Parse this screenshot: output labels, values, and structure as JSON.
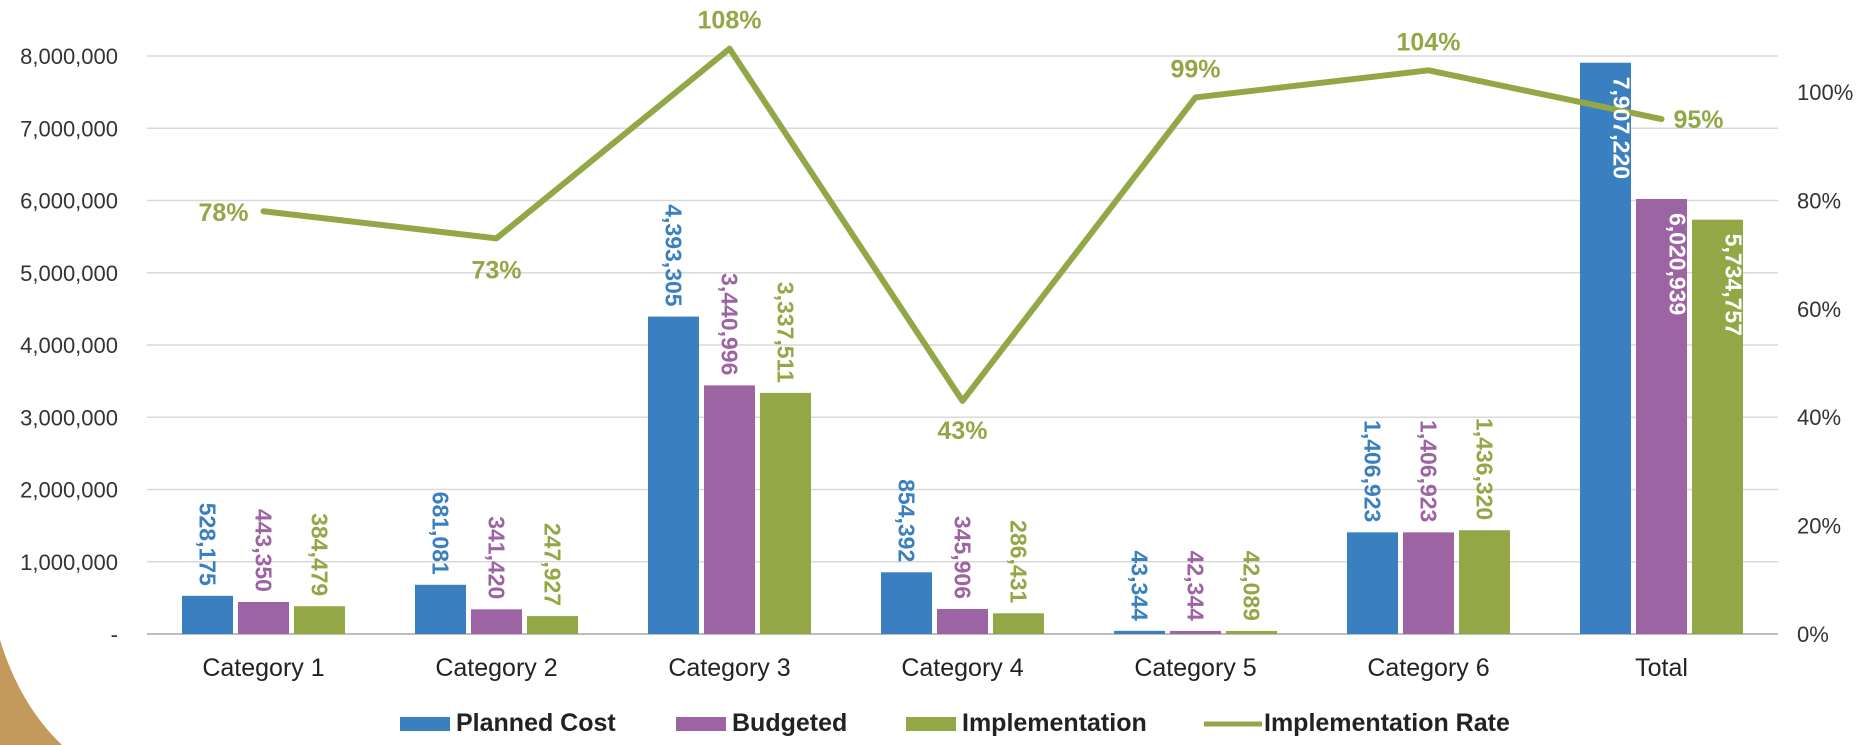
{
  "chart_data": {
    "type": "bar",
    "categories": [
      "Category 1",
      "Category 2",
      "Category 3",
      "Category 4",
      "Category 5",
      "Category 6",
      "Total"
    ],
    "series": [
      {
        "name": "Planned Cost",
        "kind": "bar",
        "axis": "left",
        "color": "#3a80c1",
        "values": [
          528175,
          681081,
          4393305,
          854392,
          43344,
          1406923,
          7907220
        ],
        "labels": [
          "528,175",
          "681,081",
          "4,393,305",
          "854,392",
          "43,344",
          "1,406,923",
          "7,907,220"
        ]
      },
      {
        "name": "Budgeted",
        "kind": "bar",
        "axis": "left",
        "color": "#9d64a3",
        "values": [
          443350,
          341420,
          3440996,
          345906,
          42344,
          1406923,
          6020939
        ],
        "labels": [
          "443,350",
          "341,420",
          "3,440,996",
          "345,906",
          "42,344",
          "1,406,923",
          "6,020,939"
        ]
      },
      {
        "name": "Implementation",
        "kind": "bar",
        "axis": "left",
        "color": "#93a746",
        "values": [
          384479,
          247927,
          3337511,
          286431,
          42089,
          1436320,
          5734757
        ],
        "labels": [
          "384,479",
          "247,927",
          "3,337,511",
          "286,431",
          "42,089",
          "1,436,320",
          "5,734,757"
        ]
      },
      {
        "name": "Implementation Rate",
        "kind": "line",
        "axis": "right",
        "color": "#93a746",
        "values": [
          78,
          73,
          108,
          43,
          99,
          104,
          95
        ],
        "labels": [
          "78%",
          "73%",
          "108%",
          "43%",
          "99%",
          "104%",
          "95%"
        ]
      }
    ],
    "y_left": {
      "ylim": [
        0,
        8000000
      ],
      "ticks": [
        0,
        1000000,
        2000000,
        3000000,
        4000000,
        5000000,
        6000000,
        7000000,
        8000000
      ],
      "tick_labels": [
        "-",
        "1,000,000",
        "2,000,000",
        "3,000,000",
        "4,000,000",
        "5,000,000",
        "6,000,000",
        "7,000,000",
        "8,000,000"
      ]
    },
    "y_right": {
      "ylim": [
        0,
        100
      ],
      "ticks": [
        0,
        20,
        40,
        60,
        80,
        100
      ],
      "tick_labels": [
        "0%",
        "20%",
        "40%",
        "60%",
        "80%",
        "100%"
      ]
    },
    "grid": true,
    "legend_position": "bottom-center",
    "title": "",
    "xlabel": "",
    "ylabel": ""
  }
}
